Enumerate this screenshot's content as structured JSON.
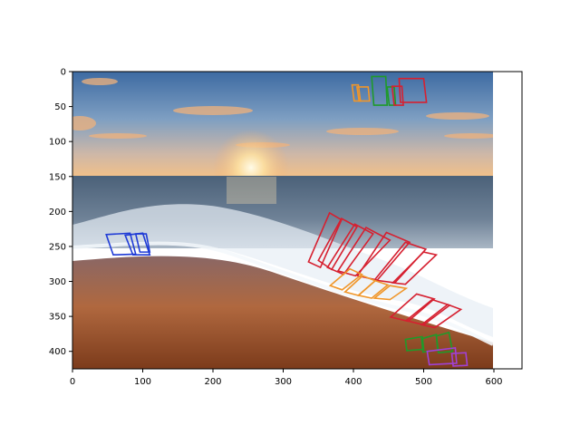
{
  "figure": {
    "xlim": [
      0,
      640
    ],
    "ylim": [
      425,
      0
    ],
    "image_extent": [
      0,
      600,
      425,
      0
    ],
    "x_ticks": [
      "0",
      "100",
      "200",
      "300",
      "400",
      "500",
      "600"
    ],
    "y_ticks": [
      "0",
      "50",
      "100",
      "150",
      "200",
      "250",
      "300",
      "350",
      "400"
    ]
  },
  "image": {
    "scene": "beach-sunset-photo",
    "colors": {
      "sky_top": "#3e6fa8",
      "sky_mid": "#8aa7c4",
      "horizon_glow": "#f6c48a",
      "sea": "#3d5873",
      "foam": "#e6eef6",
      "sand_wet": "#8d6a63",
      "sand_dry": "#c9692f"
    }
  },
  "annotations": [
    {
      "color": "#1f3bd6",
      "polygon": [
        [
          48,
          233
        ],
        [
          82,
          231
        ],
        [
          90,
          261
        ],
        [
          58,
          262
        ]
      ]
    },
    {
      "color": "#1f3bd6",
      "polygon": [
        [
          75,
          234
        ],
        [
          100,
          231
        ],
        [
          110,
          262
        ],
        [
          86,
          262
        ]
      ]
    },
    {
      "color": "#1f3bd6",
      "polygon": [
        [
          90,
          232
        ],
        [
          105,
          232
        ],
        [
          110,
          258
        ],
        [
          96,
          258
        ]
      ]
    },
    {
      "color": "#f0962a",
      "polygon": [
        [
          398,
          19
        ],
        [
          407,
          19
        ],
        [
          410,
          42
        ],
        [
          401,
          42
        ]
      ]
    },
    {
      "color": "#f0962a",
      "polygon": [
        [
          405,
          22
        ],
        [
          421,
          22
        ],
        [
          423,
          42
        ],
        [
          408,
          42
        ]
      ]
    },
    {
      "color": "#1f9a2a",
      "polygon": [
        [
          426,
          7
        ],
        [
          446,
          7
        ],
        [
          448,
          48
        ],
        [
          429,
          48
        ]
      ]
    },
    {
      "color": "#1f9a2a",
      "polygon": [
        [
          448,
          22
        ],
        [
          458,
          22
        ],
        [
          460,
          48
        ],
        [
          451,
          48
        ]
      ]
    },
    {
      "color": "#d62030",
      "polygon": [
        [
          455,
          21
        ],
        [
          469,
          21
        ],
        [
          471,
          48
        ],
        [
          458,
          48
        ]
      ]
    },
    {
      "color": "#d62030",
      "polygon": [
        [
          465,
          10
        ],
        [
          500,
          10
        ],
        [
          504,
          44
        ],
        [
          467,
          44
        ]
      ]
    },
    {
      "color": "#d62030",
      "polygon": [
        [
          336,
          272
        ],
        [
          366,
          202
        ],
        [
          383,
          212
        ],
        [
          353,
          280
        ]
      ]
    },
    {
      "color": "#d62030",
      "polygon": [
        [
          350,
          270
        ],
        [
          383,
          210
        ],
        [
          405,
          222
        ],
        [
          369,
          283
        ]
      ]
    },
    {
      "color": "#d62030",
      "polygon": [
        [
          363,
          280
        ],
        [
          402,
          218
        ],
        [
          428,
          232
        ],
        [
          386,
          290
        ]
      ]
    },
    {
      "color": "#d62030",
      "polygon": [
        [
          378,
          285
        ],
        [
          418,
          223
        ],
        [
          452,
          241
        ],
        [
          403,
          292
        ]
      ]
    },
    {
      "color": "#d62030",
      "polygon": [
        [
          406,
          292
        ],
        [
          447,
          230
        ],
        [
          480,
          244
        ],
        [
          434,
          298
        ]
      ]
    },
    {
      "color": "#d62030",
      "polygon": [
        [
          430,
          298
        ],
        [
          474,
          244
        ],
        [
          503,
          254
        ],
        [
          459,
          302
        ]
      ]
    },
    {
      "color": "#d62030",
      "polygon": [
        [
          456,
          302
        ],
        [
          500,
          258
        ],
        [
          518,
          262
        ],
        [
          474,
          304
        ]
      ]
    },
    {
      "color": "#f0962a",
      "polygon": [
        [
          367,
          306
        ],
        [
          395,
          282
        ],
        [
          412,
          290
        ],
        [
          384,
          312
        ]
      ]
    },
    {
      "color": "#f0962a",
      "polygon": [
        [
          388,
          315
        ],
        [
          413,
          292
        ],
        [
          431,
          299
        ],
        [
          407,
          320
        ]
      ]
    },
    {
      "color": "#f0962a",
      "polygon": [
        [
          407,
          320
        ],
        [
          431,
          299
        ],
        [
          449,
          305
        ],
        [
          426,
          324
        ]
      ]
    },
    {
      "color": "#f0962a",
      "polygon": [
        [
          430,
          324
        ],
        [
          452,
          306
        ],
        [
          475,
          310
        ],
        [
          452,
          326
        ]
      ]
    },
    {
      "color": "#d62030",
      "polygon": [
        [
          453,
          351
        ],
        [
          490,
          318
        ],
        [
          515,
          325
        ],
        [
          478,
          357
        ]
      ]
    },
    {
      "color": "#d62030",
      "polygon": [
        [
          475,
          356
        ],
        [
          512,
          326
        ],
        [
          537,
          334
        ],
        [
          500,
          362
        ]
      ]
    },
    {
      "color": "#d62030",
      "polygon": [
        [
          497,
          362
        ],
        [
          534,
          333
        ],
        [
          553,
          340
        ],
        [
          516,
          366
        ]
      ]
    },
    {
      "color": "#1f9a2a",
      "polygon": [
        [
          474,
          383
        ],
        [
          498,
          379
        ],
        [
          500,
          397
        ],
        [
          476,
          399
        ]
      ]
    },
    {
      "color": "#1f9a2a",
      "polygon": [
        [
          497,
          382
        ],
        [
          518,
          376
        ],
        [
          520,
          398
        ],
        [
          499,
          401
        ]
      ]
    },
    {
      "color": "#1f9a2a",
      "polygon": [
        [
          518,
          378
        ],
        [
          536,
          373
        ],
        [
          541,
          400
        ],
        [
          521,
          402
        ]
      ]
    },
    {
      "color": "#a040d6",
      "polygon": [
        [
          505,
          400
        ],
        [
          545,
          395
        ],
        [
          547,
          417
        ],
        [
          508,
          419
        ]
      ]
    },
    {
      "color": "#a040d6",
      "polygon": [
        [
          540,
          403
        ],
        [
          560,
          402
        ],
        [
          562,
          420
        ],
        [
          542,
          421
        ]
      ]
    }
  ]
}
